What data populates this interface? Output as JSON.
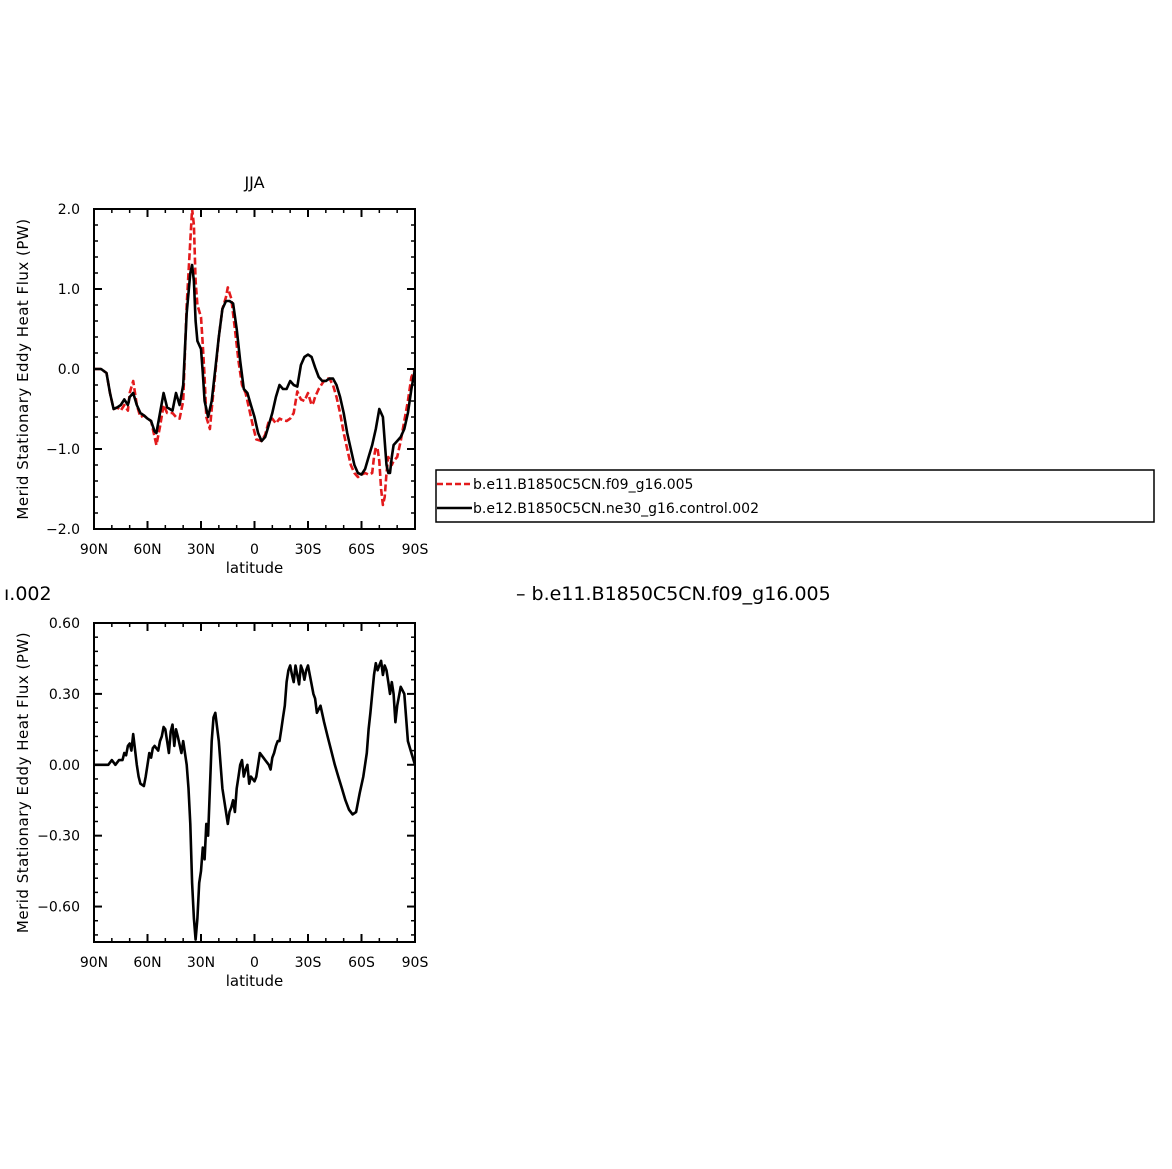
{
  "colors": {
    "red": "#e31a1c",
    "black": "#000000",
    "background": "#ffffff"
  },
  "diff_caption": {
    "left_fragment": "ı.002",
    "right": "– b.e11.B1850C5CN.f09_g16.005"
  },
  "legend": {
    "entries": [
      {
        "label": "b.e11.B1850C5CN.f09_g16.005",
        "color": "#e31a1c",
        "style": "dashed"
      },
      {
        "label": "b.e12.B1850C5CN.ne30_g16.control.002",
        "color": "#000000",
        "style": "solid"
      }
    ]
  },
  "chart_data": [
    {
      "type": "line",
      "title": "JJA",
      "xlabel": "latitude",
      "ylabel": "Merid Stationary Eddy Heat Flux (PW)",
      "xlim": [
        90,
        -90
      ],
      "ylim": [
        -2.0,
        2.0
      ],
      "xticks": [
        {
          "v": 90,
          "label": "90N"
        },
        {
          "v": 60,
          "label": "60N"
        },
        {
          "v": 30,
          "label": "30N"
        },
        {
          "v": 0,
          "label": "0"
        },
        {
          "v": -30,
          "label": "30S"
        },
        {
          "v": -60,
          "label": "60S"
        },
        {
          "v": -90,
          "label": "90S"
        }
      ],
      "yticks": [
        {
          "v": 2.0,
          "label": "2.0"
        },
        {
          "v": 1.0,
          "label": "1.0"
        },
        {
          "v": 0.0,
          "label": "0.0"
        },
        {
          "v": -1.0,
          "label": "−1.0"
        },
        {
          "v": -2.0,
          "label": "−2.0"
        }
      ],
      "series": [
        {
          "name": "b.e11.B1850C5CN.f09_g16.005",
          "color": "#e31a1c",
          "dash": true,
          "x": [
            90,
            86,
            83,
            81,
            79,
            77,
            75,
            73,
            71,
            70,
            68,
            66,
            64,
            62,
            60,
            58,
            56,
            55,
            53,
            51,
            49,
            46,
            44,
            42,
            40,
            38,
            36,
            35,
            34,
            33,
            32,
            30,
            29,
            28,
            27,
            25,
            24,
            22,
            20,
            18,
            16,
            15,
            14,
            13,
            11,
            9,
            7,
            5,
            3,
            1,
            -1,
            -4,
            -6,
            -8,
            -10,
            -12,
            -14,
            -16,
            -18,
            -20,
            -22,
            -24,
            -26,
            -28,
            -30,
            -32,
            -33,
            -34,
            -36,
            -38,
            -40,
            -42,
            -44,
            -46,
            -48,
            -50,
            -52,
            -54,
            -56,
            -58,
            -60,
            -62,
            -64,
            -66,
            -67,
            -68,
            -69,
            -70,
            -71,
            -72,
            -73,
            -74,
            -75,
            -76,
            -77,
            -78,
            -80,
            -82,
            -84,
            -86,
            -88,
            -90
          ],
          "y": [
            0.0,
            0.0,
            -0.05,
            -0.3,
            -0.5,
            -0.48,
            -0.52,
            -0.45,
            -0.52,
            -0.3,
            -0.15,
            -0.45,
            -0.6,
            -0.58,
            -0.62,
            -0.65,
            -0.85,
            -0.95,
            -0.72,
            -0.45,
            -0.55,
            -0.55,
            -0.6,
            -0.62,
            -0.4,
            0.8,
            1.6,
            2.0,
            1.8,
            1.1,
            0.8,
            0.65,
            0.3,
            -0.1,
            -0.6,
            -0.75,
            -0.5,
            -0.05,
            0.4,
            0.75,
            0.9,
            1.02,
            0.95,
            0.88,
            0.5,
            0.1,
            -0.2,
            -0.3,
            -0.5,
            -0.7,
            -0.88,
            -0.9,
            -0.82,
            -0.65,
            -0.62,
            -0.68,
            -0.62,
            -0.64,
            -0.65,
            -0.62,
            -0.55,
            -0.28,
            -0.38,
            -0.4,
            -0.3,
            -0.45,
            -0.42,
            -0.35,
            -0.25,
            -0.18,
            -0.12,
            -0.12,
            -0.2,
            -0.35,
            -0.55,
            -0.8,
            -1.0,
            -1.2,
            -1.3,
            -1.35,
            -1.32,
            -1.3,
            -1.32,
            -1.3,
            -1.1,
            -0.98,
            -1.0,
            -1.15,
            -1.5,
            -1.7,
            -1.6,
            -1.3,
            -1.1,
            -1.15,
            -1.2,
            -1.15,
            -1.1,
            -0.9,
            -0.65,
            -0.4,
            -0.1,
            0.0
          ]
        },
        {
          "name": "b.e12.B1850C5CN.ne30_g16.control.002",
          "color": "#000000",
          "dash": false,
          "x": [
            90,
            86,
            83,
            81,
            79,
            77,
            75,
            73,
            71,
            70,
            68,
            66,
            64,
            62,
            60,
            58,
            56,
            55,
            53,
            51,
            49,
            46,
            44,
            42,
            40,
            38,
            36,
            35,
            34,
            33,
            32,
            30,
            29,
            28,
            26,
            24,
            22,
            20,
            18,
            16,
            14,
            12,
            10,
            8,
            6,
            4,
            2,
            0,
            -2,
            -4,
            -6,
            -8,
            -10,
            -12,
            -14,
            -16,
            -18,
            -20,
            -22,
            -24,
            -26,
            -28,
            -30,
            -32,
            -34,
            -36,
            -38,
            -40,
            -42,
            -44,
            -46,
            -48,
            -50,
            -52,
            -54,
            -56,
            -58,
            -60,
            -62,
            -64,
            -66,
            -68,
            -70,
            -72,
            -73,
            -74,
            -75,
            -76,
            -77,
            -78,
            -80,
            -82,
            -84,
            -86,
            -88,
            -90
          ],
          "y": [
            0.0,
            0.0,
            -0.05,
            -0.3,
            -0.5,
            -0.48,
            -0.45,
            -0.38,
            -0.45,
            -0.35,
            -0.3,
            -0.45,
            -0.55,
            -0.58,
            -0.62,
            -0.65,
            -0.78,
            -0.8,
            -0.55,
            -0.3,
            -0.48,
            -0.52,
            -0.3,
            -0.45,
            -0.2,
            0.7,
            1.2,
            1.3,
            1.1,
            0.6,
            0.35,
            0.25,
            -0.05,
            -0.4,
            -0.6,
            -0.4,
            0.0,
            0.4,
            0.75,
            0.85,
            0.85,
            0.82,
            0.5,
            0.1,
            -0.25,
            -0.3,
            -0.45,
            -0.6,
            -0.8,
            -0.9,
            -0.85,
            -0.7,
            -0.55,
            -0.35,
            -0.2,
            -0.25,
            -0.25,
            -0.15,
            -0.2,
            -0.22,
            0.05,
            0.15,
            0.18,
            0.15,
            0.02,
            -0.1,
            -0.15,
            -0.15,
            -0.12,
            -0.12,
            -0.2,
            -0.35,
            -0.55,
            -0.8,
            -1.0,
            -1.2,
            -1.3,
            -1.32,
            -1.25,
            -1.1,
            -0.95,
            -0.75,
            -0.5,
            -0.6,
            -0.9,
            -1.2,
            -1.3,
            -1.3,
            -1.1,
            -0.95,
            -0.9,
            -0.85,
            -0.75,
            -0.55,
            -0.25,
            0.0
          ]
        }
      ]
    },
    {
      "type": "line",
      "title": "",
      "xlabel": "latitude",
      "ylabel": "Merid Stationary Eddy Heat Flux (PW)",
      "xlim": [
        90,
        -90
      ],
      "ylim": [
        -0.75,
        0.6
      ],
      "xticks": [
        {
          "v": 90,
          "label": "90N"
        },
        {
          "v": 60,
          "label": "60N"
        },
        {
          "v": 30,
          "label": "30N"
        },
        {
          "v": 0,
          "label": "0"
        },
        {
          "v": -30,
          "label": "30S"
        },
        {
          "v": -60,
          "label": "60S"
        },
        {
          "v": -90,
          "label": "90S"
        }
      ],
      "yticks": [
        {
          "v": 0.6,
          "label": "0.60"
        },
        {
          "v": 0.3,
          "label": "0.30"
        },
        {
          "v": 0.0,
          "label": "0.00"
        },
        {
          "v": -0.3,
          "label": "−0.30"
        },
        {
          "v": -0.6,
          "label": "−0.60"
        }
      ],
      "series": [
        {
          "name": "",
          "color": "#000000",
          "dash": false,
          "x": [
            90,
            85,
            82,
            80,
            79,
            78,
            76,
            74,
            73,
            72,
            71,
            70,
            69,
            68,
            66,
            65,
            64,
            62,
            61,
            60,
            59,
            58,
            57,
            56,
            54,
            53,
            52,
            51,
            50,
            49,
            48,
            47,
            46,
            45,
            44,
            43,
            41,
            40,
            38,
            37,
            36,
            35,
            34,
            33,
            32,
            31,
            30,
            29,
            28,
            27,
            26,
            25,
            24,
            23,
            22,
            20,
            19,
            18,
            17,
            16,
            15,
            14,
            13,
            12,
            11,
            10,
            9,
            8,
            7,
            6,
            5,
            4,
            3,
            2,
            0,
            -1,
            -2,
            -3,
            -4,
            -5,
            -6,
            -8,
            -9,
            -10,
            -11,
            -12,
            -13,
            -14,
            -15,
            -16,
            -17,
            -18,
            -19,
            -20,
            -21,
            -22,
            -23,
            -24,
            -25,
            -26,
            -27,
            -28,
            -29,
            -30,
            -31,
            -32,
            -33,
            -34,
            -35,
            -37,
            -39,
            -41,
            -43,
            -45,
            -47,
            -49,
            -51,
            -53,
            -55,
            -57,
            -59,
            -61,
            -63,
            -64,
            -65,
            -66,
            -67,
            -68,
            -69,
            -70,
            -71,
            -72,
            -73,
            -74,
            -75,
            -76,
            -77,
            -78,
            -79,
            -80,
            -82,
            -84,
            -85,
            -86,
            -88,
            -90
          ],
          "y": [
            0.0,
            0.0,
            0.0,
            0.02,
            0.01,
            0.0,
            0.02,
            0.02,
            0.05,
            0.04,
            0.08,
            0.09,
            0.06,
            0.13,
            0.0,
            -0.05,
            -0.08,
            -0.09,
            -0.05,
            0.0,
            0.05,
            0.03,
            0.07,
            0.08,
            0.06,
            0.1,
            0.12,
            0.16,
            0.15,
            0.1,
            0.05,
            0.14,
            0.17,
            0.08,
            0.15,
            0.12,
            0.05,
            0.1,
            0.0,
            -0.1,
            -0.25,
            -0.5,
            -0.65,
            -0.74,
            -0.65,
            -0.5,
            -0.45,
            -0.35,
            -0.4,
            -0.25,
            -0.3,
            -0.1,
            0.1,
            0.2,
            0.22,
            0.1,
            0.0,
            -0.1,
            -0.15,
            -0.2,
            -0.25,
            -0.2,
            -0.18,
            -0.15,
            -0.2,
            -0.1,
            -0.05,
            0.0,
            0.02,
            -0.05,
            -0.02,
            0.0,
            -0.08,
            -0.05,
            -0.07,
            -0.05,
            0.0,
            0.05,
            0.04,
            0.03,
            0.02,
            0.0,
            -0.02,
            0.03,
            0.05,
            0.08,
            0.1,
            0.1,
            0.15,
            0.2,
            0.25,
            0.35,
            0.4,
            0.42,
            0.38,
            0.35,
            0.42,
            0.38,
            0.34,
            0.42,
            0.4,
            0.36,
            0.4,
            0.42,
            0.38,
            0.34,
            0.3,
            0.28,
            0.22,
            0.25,
            0.18,
            0.12,
            0.06,
            0.0,
            -0.05,
            -0.1,
            -0.15,
            -0.19,
            -0.21,
            -0.2,
            -0.12,
            -0.05,
            0.05,
            0.15,
            0.22,
            0.3,
            0.38,
            0.43,
            0.4,
            0.42,
            0.44,
            0.38,
            0.42,
            0.4,
            0.35,
            0.3,
            0.35,
            0.3,
            0.18,
            0.25,
            0.33,
            0.3,
            0.2,
            0.1,
            0.05,
            0.0
          ]
        }
      ]
    }
  ]
}
